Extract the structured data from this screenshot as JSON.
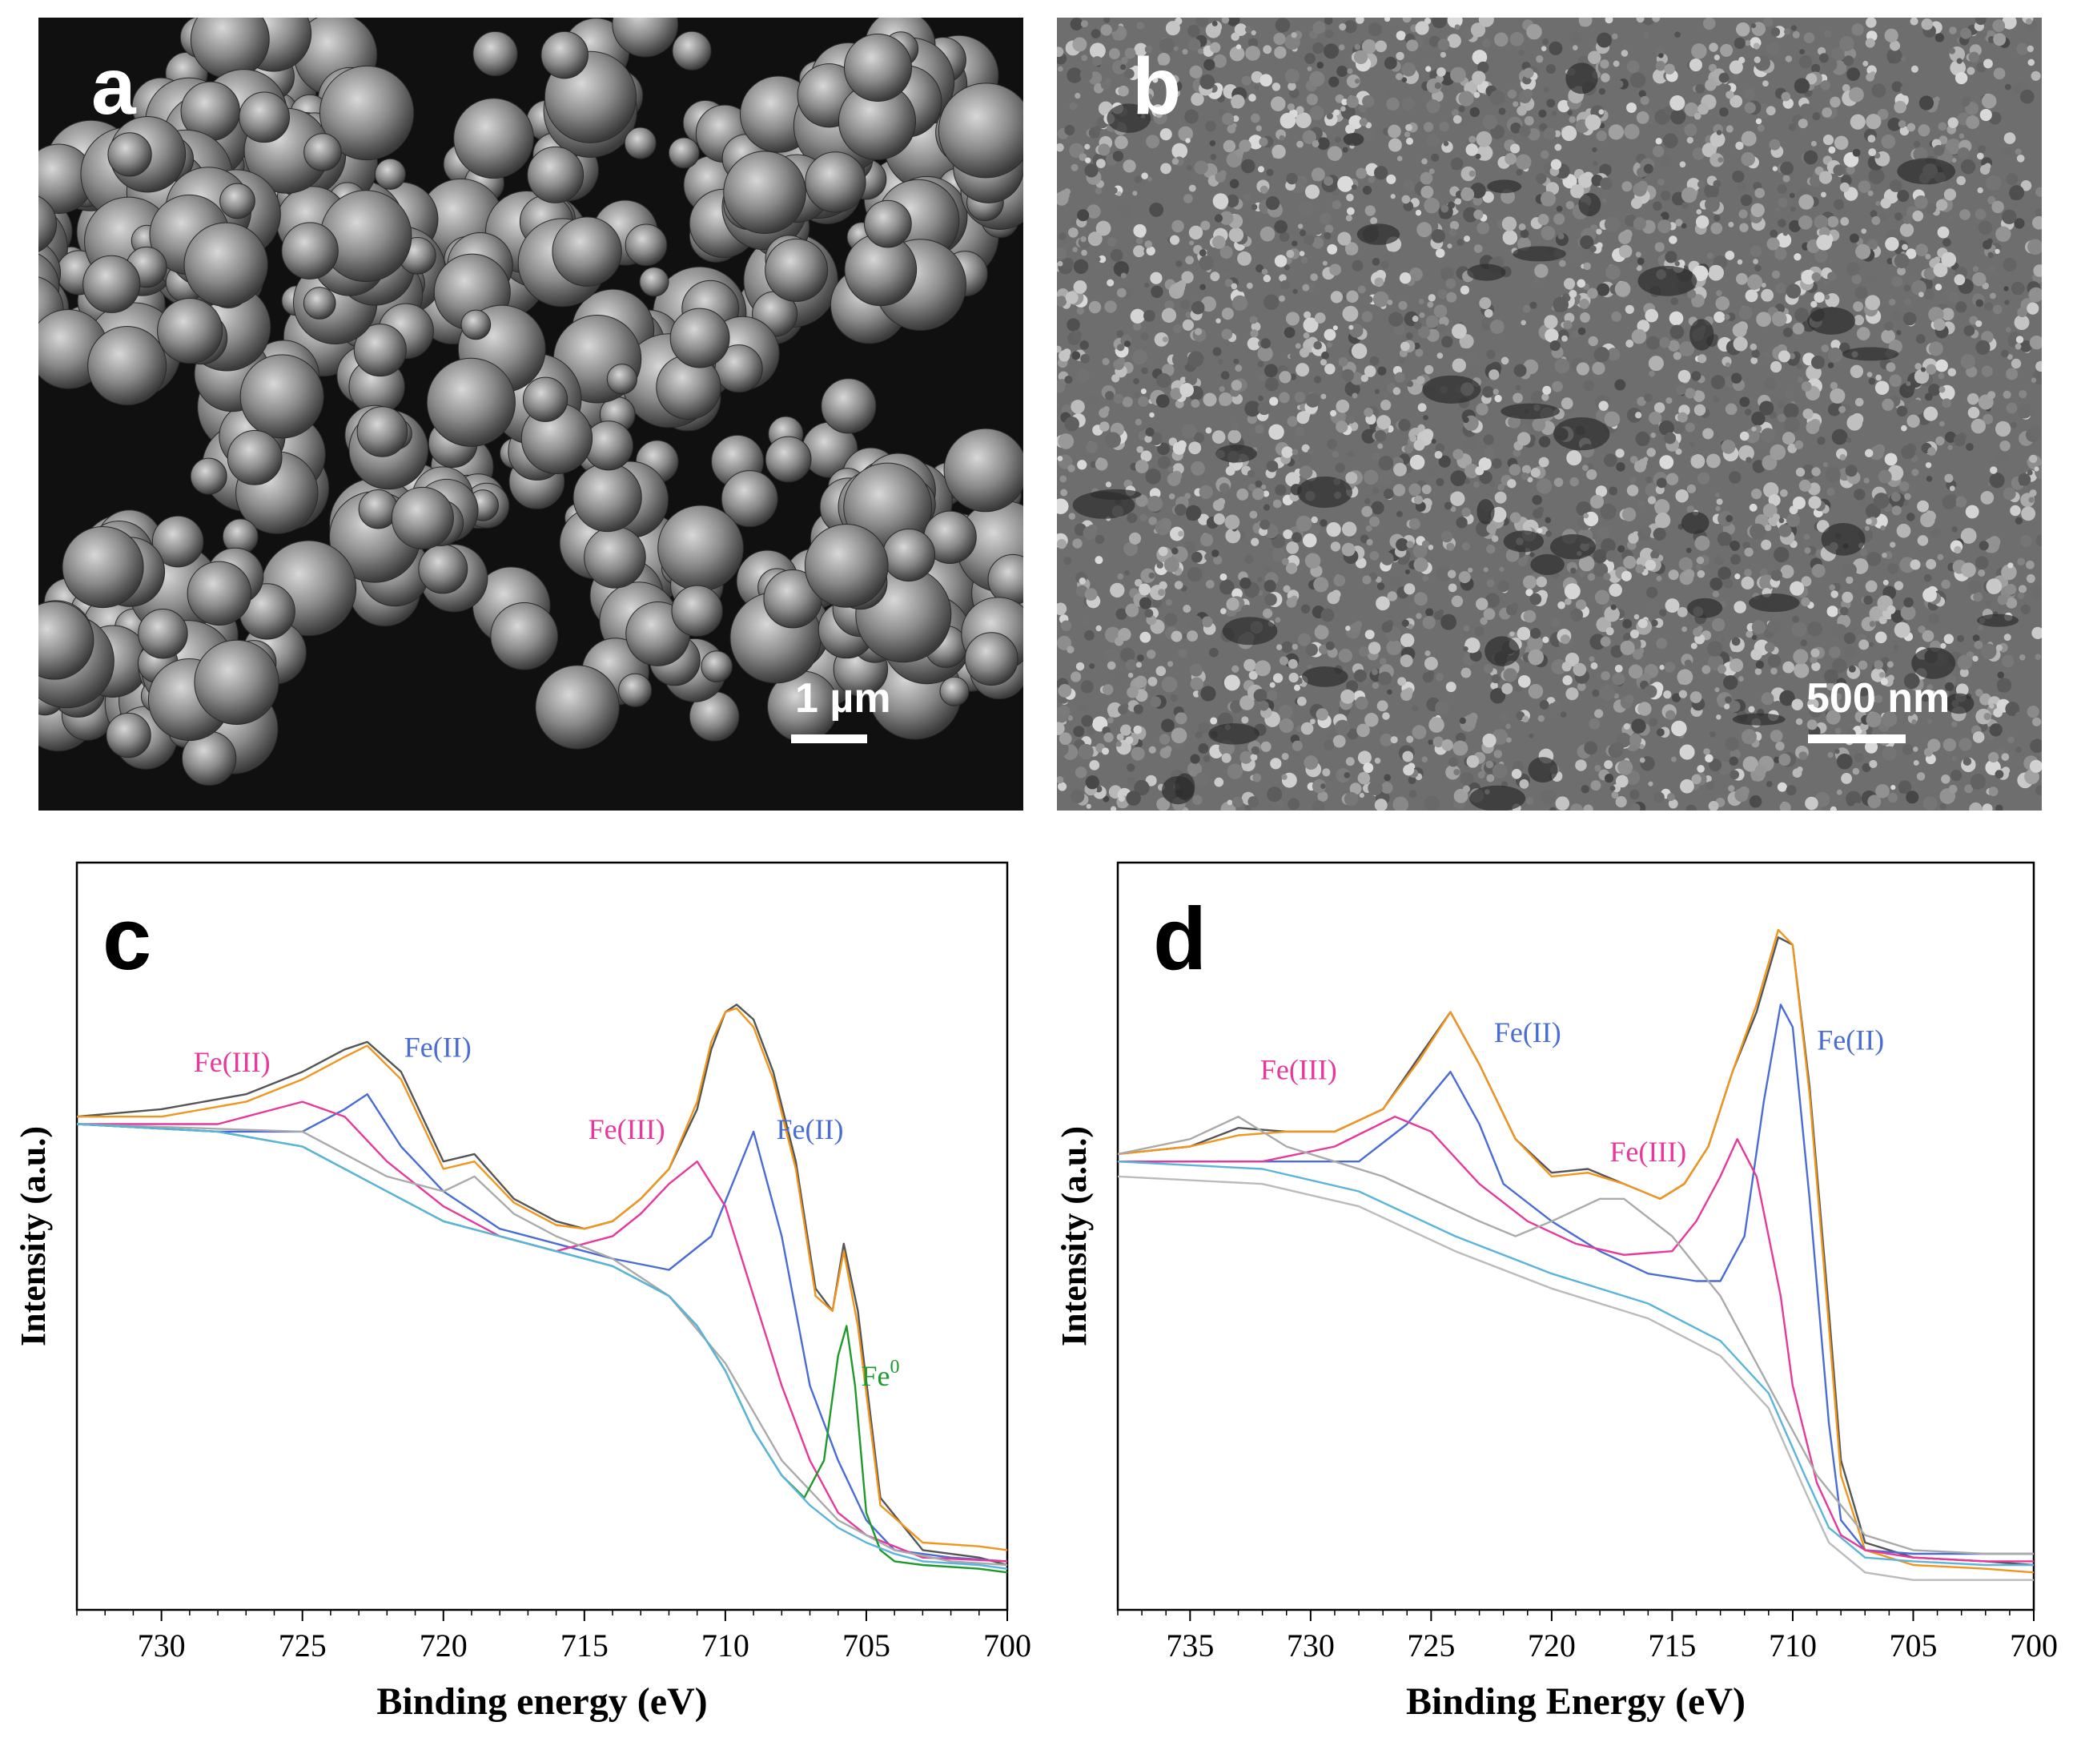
{
  "panels": {
    "a": {
      "letter": "a",
      "scale_label": "1 µm"
    },
    "b": {
      "letter": "b",
      "scale_label": "500 nm"
    }
  },
  "chart_data": [
    {
      "type": "line",
      "panel": "c",
      "title": "",
      "xlabel": "Binding energy (eV)",
      "ylabel": "Intensity (a.u.)",
      "xlim": [
        733,
        700
      ],
      "x_reversed": true,
      "xticks": [
        730,
        725,
        720,
        715,
        710,
        705,
        700
      ],
      "y_ticks_labeled": false,
      "grid": false,
      "legend": "none",
      "annotations": [
        {
          "text": "Fe(III)",
          "color": "#e6399b",
          "x": 727.5,
          "y": 0.72
        },
        {
          "text": "Fe(II)",
          "color": "#4a6cd4",
          "x": 720.2,
          "y": 0.74
        },
        {
          "text": "Fe(III)",
          "color": "#e6399b",
          "x": 713.5,
          "y": 0.63
        },
        {
          "text": "Fe(II)",
          "color": "#4a6cd4",
          "x": 707.0,
          "y": 0.63
        },
        {
          "text": "Fe",
          "sup": "0",
          "color": "#1e9a2a",
          "x": 704.5,
          "y": 0.3
        }
      ],
      "series": [
        {
          "color": "#555555",
          "role": "measured",
          "x": [
            733,
            730,
            727,
            725,
            723.5,
            722.7,
            721.5,
            720,
            718.9,
            717.5,
            716,
            715,
            714,
            713,
            712,
            711,
            710.5,
            710,
            709.6,
            709,
            708.3,
            707.5,
            706.8,
            706.2,
            705.8,
            705.3,
            704.5,
            703,
            701,
            700
          ],
          "y": [
            0.66,
            0.67,
            0.69,
            0.72,
            0.75,
            0.76,
            0.72,
            0.6,
            0.61,
            0.55,
            0.52,
            0.51,
            0.52,
            0.55,
            0.59,
            0.67,
            0.75,
            0.8,
            0.81,
            0.79,
            0.72,
            0.6,
            0.43,
            0.4,
            0.49,
            0.4,
            0.15,
            0.08,
            0.07,
            0.06
          ]
        },
        {
          "color": "#f0961e",
          "role": "fit envelope",
          "x": [
            733,
            730,
            727,
            725,
            723.5,
            722.7,
            721.5,
            720,
            718.9,
            717.5,
            716,
            715,
            714,
            713,
            712,
            711,
            710.5,
            710,
            709.6,
            709,
            708.3,
            707.5,
            706.8,
            706.2,
            705.8,
            705.3,
            704.5,
            703,
            701,
            700
          ],
          "y": [
            0.66,
            0.66,
            0.68,
            0.71,
            0.74,
            0.755,
            0.71,
            0.59,
            0.6,
            0.545,
            0.515,
            0.51,
            0.52,
            0.55,
            0.59,
            0.68,
            0.76,
            0.8,
            0.805,
            0.78,
            0.71,
            0.59,
            0.42,
            0.4,
            0.48,
            0.38,
            0.14,
            0.09,
            0.085,
            0.08
          ]
        },
        {
          "color": "#4a6cd4",
          "role": "Fe(II) component",
          "x": [
            733,
            728,
            725,
            723.5,
            722.7,
            721.5,
            720,
            718,
            716,
            714,
            712,
            710.5,
            709,
            708,
            707,
            706,
            705,
            704,
            702,
            700
          ],
          "y": [
            0.65,
            0.64,
            0.64,
            0.67,
            0.69,
            0.62,
            0.56,
            0.51,
            0.49,
            0.47,
            0.455,
            0.5,
            0.64,
            0.5,
            0.3,
            0.2,
            0.12,
            0.08,
            0.07,
            0.065
          ]
        },
        {
          "color": "#e6399b",
          "role": "Fe(III) component",
          "x": [
            733,
            728,
            726,
            725,
            723.5,
            722,
            720,
            718,
            716,
            714,
            713,
            712,
            711,
            710,
            709,
            708,
            707,
            706,
            705,
            703,
            700
          ],
          "y": [
            0.65,
            0.65,
            0.67,
            0.68,
            0.66,
            0.6,
            0.54,
            0.5,
            0.48,
            0.5,
            0.53,
            0.57,
            0.6,
            0.54,
            0.42,
            0.3,
            0.2,
            0.13,
            0.1,
            0.07,
            0.065
          ]
        },
        {
          "color": "#aaaaaa",
          "role": "satellite",
          "x": [
            733,
            725,
            722,
            720,
            718.9,
            717.5,
            716,
            714,
            712,
            710,
            708,
            706,
            704,
            702,
            700
          ],
          "y": [
            0.65,
            0.64,
            0.58,
            0.56,
            0.58,
            0.53,
            0.5,
            0.47,
            0.42,
            0.33,
            0.2,
            0.12,
            0.08,
            0.065,
            0.06
          ]
        },
        {
          "color": "#1e9a2a",
          "role": "Fe0 component",
          "x": [
            733,
            728,
            725,
            722,
            720,
            718,
            716,
            714,
            712,
            711,
            710,
            709,
            708,
            707.2,
            706.5,
            706,
            705.7,
            705.4,
            705,
            704.5,
            704,
            703,
            701,
            700
          ],
          "y": [
            0.65,
            0.64,
            0.62,
            0.56,
            0.52,
            0.5,
            0.48,
            0.46,
            0.42,
            0.38,
            0.32,
            0.24,
            0.18,
            0.15,
            0.2,
            0.34,
            0.38,
            0.3,
            0.13,
            0.08,
            0.065,
            0.06,
            0.055,
            0.05
          ]
        },
        {
          "color": "#5ab4dc",
          "role": "background",
          "x": [
            733,
            728,
            725,
            722,
            720,
            718,
            716,
            714,
            712,
            711,
            710,
            709,
            708,
            707,
            706,
            705,
            704,
            703,
            701,
            700
          ],
          "y": [
            0.65,
            0.64,
            0.62,
            0.56,
            0.52,
            0.5,
            0.48,
            0.46,
            0.42,
            0.38,
            0.32,
            0.24,
            0.18,
            0.14,
            0.11,
            0.09,
            0.075,
            0.065,
            0.06,
            0.055
          ]
        }
      ]
    },
    {
      "type": "line",
      "panel": "d",
      "title": "",
      "xlabel": "Binding Energy (eV)",
      "ylabel": "Intensity (a.u.)",
      "xlim": [
        738,
        700
      ],
      "x_reversed": true,
      "xticks": [
        735,
        730,
        725,
        720,
        715,
        710,
        705,
        700
      ],
      "y_ticks_labeled": false,
      "grid": false,
      "legend": "none",
      "annotations": [
        {
          "text": "Fe(III)",
          "color": "#e6399b",
          "x": 730.5,
          "y": 0.71
        },
        {
          "text": "Fe(II)",
          "color": "#4a6cd4",
          "x": 721.0,
          "y": 0.76
        },
        {
          "text": "Fe(III)",
          "color": "#e6399b",
          "x": 716.0,
          "y": 0.6
        },
        {
          "text": "Fe(II)",
          "color": "#4a6cd4",
          "x": 707.6,
          "y": 0.75
        },
        {}
      ],
      "series": [
        {
          "color": "#555555",
          "role": "measured",
          "x": [
            738,
            735,
            733,
            731,
            729,
            727,
            725.5,
            724.2,
            723,
            721.5,
            720,
            718.5,
            717,
            715.5,
            714.5,
            713.5,
            712.5,
            711.5,
            710.6,
            710,
            709.3,
            708.5,
            708,
            707,
            705,
            702,
            700
          ],
          "y": [
            0.61,
            0.62,
            0.645,
            0.64,
            0.64,
            0.67,
            0.74,
            0.8,
            0.73,
            0.63,
            0.585,
            0.59,
            0.57,
            0.55,
            0.57,
            0.62,
            0.72,
            0.8,
            0.9,
            0.89,
            0.7,
            0.4,
            0.2,
            0.09,
            0.07,
            0.065,
            0.06
          ]
        },
        {
          "color": "#f0961e",
          "role": "fit envelope",
          "x": [
            738,
            735,
            733,
            731,
            729,
            727,
            725.5,
            724.2,
            723,
            721.5,
            720,
            718.5,
            717,
            715.5,
            714.5,
            713.5,
            712.5,
            711.5,
            710.6,
            710,
            709.3,
            708.5,
            708,
            707,
            705,
            702,
            700
          ],
          "y": [
            0.61,
            0.62,
            0.635,
            0.64,
            0.64,
            0.67,
            0.735,
            0.8,
            0.73,
            0.63,
            0.58,
            0.585,
            0.57,
            0.55,
            0.57,
            0.62,
            0.72,
            0.81,
            0.91,
            0.89,
            0.69,
            0.38,
            0.18,
            0.08,
            0.06,
            0.055,
            0.05
          ]
        },
        {
          "color": "#4a6cd4",
          "role": "Fe(II) component",
          "x": [
            738,
            732,
            728,
            726,
            724.2,
            723,
            722,
            720,
            718,
            716,
            714,
            713,
            712,
            711.2,
            710.5,
            710,
            709.3,
            708.5,
            708,
            707,
            705,
            702,
            700
          ],
          "y": [
            0.6,
            0.6,
            0.6,
            0.65,
            0.72,
            0.65,
            0.57,
            0.52,
            0.48,
            0.45,
            0.44,
            0.44,
            0.5,
            0.68,
            0.81,
            0.78,
            0.55,
            0.25,
            0.12,
            0.08,
            0.075,
            0.075,
            0.075
          ]
        },
        {
          "color": "#e6399b",
          "role": "Fe(III) component",
          "x": [
            738,
            732,
            729,
            726.5,
            725,
            723,
            721,
            719,
            717,
            715,
            714,
            713,
            712.3,
            711.5,
            710.5,
            710,
            709,
            708,
            707,
            705,
            702,
            700
          ],
          "y": [
            0.6,
            0.6,
            0.62,
            0.66,
            0.64,
            0.57,
            0.52,
            0.49,
            0.475,
            0.48,
            0.52,
            0.58,
            0.63,
            0.58,
            0.42,
            0.3,
            0.17,
            0.1,
            0.08,
            0.07,
            0.065,
            0.065
          ]
        },
        {
          "color": "#aaaaaa",
          "role": "satellite",
          "x": [
            738,
            735,
            733,
            731,
            729,
            727,
            725,
            723,
            721.5,
            720,
            718,
            717,
            715,
            713,
            711,
            709,
            707,
            705,
            702,
            700
          ],
          "y": [
            0.61,
            0.63,
            0.66,
            0.62,
            0.6,
            0.58,
            0.55,
            0.52,
            0.5,
            0.52,
            0.55,
            0.55,
            0.5,
            0.42,
            0.3,
            0.18,
            0.1,
            0.08,
            0.075,
            0.075
          ]
        },
        {
          "color": "#bbbbbb",
          "role": "background lower",
          "x": [
            738,
            732,
            728,
            724,
            720,
            716,
            713,
            711,
            709.5,
            708.5,
            707,
            705,
            702,
            700
          ],
          "y": [
            0.58,
            0.57,
            0.54,
            0.48,
            0.43,
            0.39,
            0.34,
            0.27,
            0.16,
            0.09,
            0.05,
            0.04,
            0.04,
            0.04
          ]
        },
        {
          "color": "#5ab4dc",
          "role": "background",
          "x": [
            738,
            732,
            728,
            724,
            720,
            716,
            713,
            711,
            709.5,
            708.5,
            707,
            705,
            702,
            700
          ],
          "y": [
            0.6,
            0.59,
            0.56,
            0.5,
            0.45,
            0.41,
            0.36,
            0.29,
            0.18,
            0.11,
            0.07,
            0.065,
            0.06,
            0.06
          ]
        }
      ]
    }
  ]
}
